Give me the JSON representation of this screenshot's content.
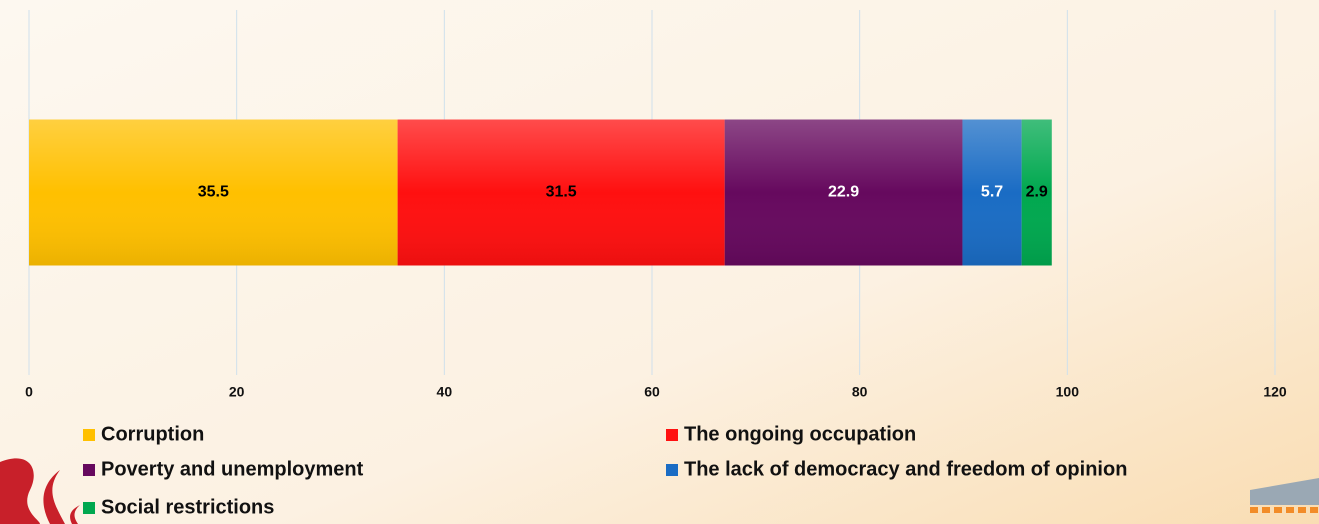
{
  "chart_data": {
    "type": "bar",
    "orientation": "horizontal",
    "stacked": true,
    "categories": [
      null
    ],
    "series": [
      {
        "name": "Corruption",
        "color": "#ffc000",
        "label_color": "#000000",
        "values": [
          35.5
        ]
      },
      {
        "name": "The ongoing occupation",
        "color": "#ff1010",
        "label_color": "#000000",
        "values": [
          31.5
        ]
      },
      {
        "name": "Poverty and unemployment",
        "color": "#66095e",
        "label_color": "#ffffff",
        "values": [
          22.9
        ]
      },
      {
        "name": "The lack of democracy and freedom of opinion",
        "color": "#1a6cc4",
        "label_color": "#ffffff",
        "values": [
          5.7
        ]
      },
      {
        "name": "Social restrictions",
        "color": "#00a84f",
        "label_color": "#000000",
        "values": [
          2.9
        ]
      }
    ],
    "xlim": [
      0,
      120
    ],
    "xticks": [
      0,
      20,
      40,
      60,
      80,
      100,
      120
    ],
    "grid": true,
    "legend": "bottom"
  }
}
